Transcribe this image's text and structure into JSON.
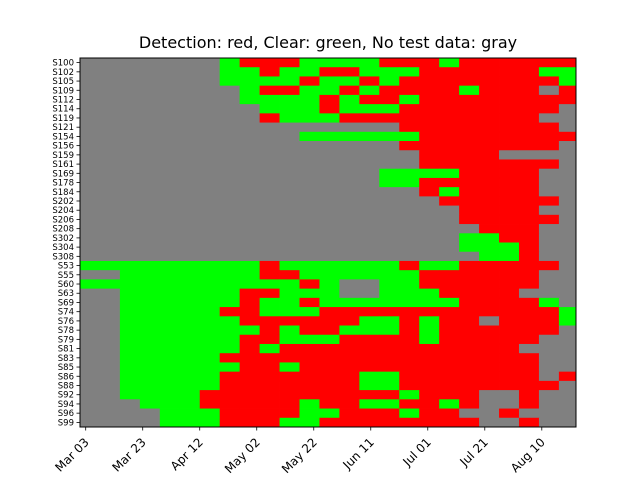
{
  "chart_data": {
    "type": "heatmap",
    "title": "Detection: red, Clear: green, No test data: gray",
    "xlabel": "",
    "ylabel": "",
    "colors": {
      "detection": "#ff0000",
      "clear": "#00ff00",
      "no_data": "#808080"
    },
    "x_start": "2020-03-01",
    "x_end": "2020-08-22",
    "week_starts": [
      "2020-03-01",
      "2020-03-08",
      "2020-03-15",
      "2020-03-22",
      "2020-03-29",
      "2020-04-05",
      "2020-04-12",
      "2020-04-19",
      "2020-04-26",
      "2020-05-03",
      "2020-05-10",
      "2020-05-17",
      "2020-05-24",
      "2020-05-31",
      "2020-06-07",
      "2020-06-14",
      "2020-06-21",
      "2020-06-28",
      "2020-07-05",
      "2020-07-12",
      "2020-07-19",
      "2020-07-26",
      "2020-08-02",
      "2020-08-09",
      "2020-08-16"
    ],
    "xticks": [
      "Mar 03",
      "Mar 23",
      "Apr 12",
      "May 02",
      "May 22",
      "Jun 11",
      "Jul 01",
      "Jul 21",
      "Aug 10"
    ],
    "xtick_dates": [
      "2020-03-03",
      "2020-03-23",
      "2020-04-12",
      "2020-05-02",
      "2020-05-22",
      "2020-06-11",
      "2020-07-01",
      "2020-07-21",
      "2020-08-10"
    ],
    "yticks": [
      "S100",
      "S102",
      "S105",
      "S109",
      "S112",
      "S114",
      "S119",
      "S121",
      "S154",
      "S156",
      "S159",
      "S161",
      "S169",
      "S178",
      "S184",
      "S202",
      "S204",
      "S206",
      "S208",
      "S302",
      "S304",
      "S308",
      "S53",
      "S55",
      "S60",
      "S63",
      "S69",
      "S74",
      "S76",
      "S78",
      "S79",
      "S81",
      "S83",
      "S85",
      "S86",
      "S88",
      "S92",
      "S94",
      "S96",
      "S99"
    ],
    "values": [
      "GGGGGGGCRRRCCCCRRRCRRRRRR",
      "GGGGGGGCCRCCRRCCCRRRRRRCC",
      "GGGGGGGCCCCRCCRCRRRRRRRRC",
      "GGGGGGGGCRRCCRCRRRRCRRRGR",
      "GGGGGGGGCCCCRCRRCRRRRRRRR",
      "GGGGGGGGGCCCRCCCRRRRRRRRG",
      "GGGGGGGGGRCCCRRRRRRRRRRGG",
      "GGGGGGGGGGGGGGGGRRRRRRRRG",
      "GGGGGGGGGGGCCCCCCRRRRRRRR",
      "GGGGGGGGGGGGGGGGRRRRRRRRG",
      "GGGGGGGGGGGGGGGGGRRRRGGGG",
      "GGGGGGGGGGGGGGGGGRRRRRRRG",
      "GGGGGGGGGGGGGGGCCCCRRRRGG",
      "GGGGGGGGGGGGGGGCCRRRRRRGG",
      "GGGGGGGGGGGGGGGGGRCRRRRGG",
      "GGGGGGGGGGGGGGGGGGRRRRRRG",
      "GGGGGGGGGGGGGGGGGGGRRRRGG",
      "GGGGGGGGGGGGGGGGGGGRRRRRG",
      "GGGGGGGGGGGGGGGGGGGGRRRGG",
      "GGGGGGGGGGGGGGGGGGGCCRRGG",
      "GGGGGGGGGGGGGGGGGGGCCCRGG",
      "GGGGGGGGGGGGGGGGGGGGCCRGG",
      "CCCCCCCCCRCCCCCCRCCRRRRRG",
      "GGCCCCCCCRRCCCCCCRRRRRRGG",
      "CCCCCCCCCCCRCGGCCRRRRRRGG",
      "GGCCCCCCRRCCCGGCCCRRRRGGG",
      "GGCCCCCCRCCRCCCCCCCRRRRCG",
      "GGCCCCCRRCCCRRRRRRRRRRRRC",
      "GGCCCCCCRRRRRRCCRCRRGRRRC",
      "GGCCCCCCCRCRRCCCRCRRRRRRG",
      "GGCCCCCCRRCCCRRRRCRRRRRGG",
      "GGCCCCCCRCRRRRRRRRRRRRGGG",
      "GGCCCCCRRRRRRRRRRRRRRRRGG",
      "GGCCCCCCRRCRRRRRRRRRRRRGG",
      "GGCCCCCRRRRRRRCCRRRRRRRGR",
      "GGCCCCCRRRRRRRCCRRRRRRRRG",
      "GGCCCCRRRRRRRRRRCRRRGGRGG",
      "GGGCCCRRRRRCRRCCRRCRGGRGG",
      "GGGGCCCRRRRCCRRRCRRGGRGGG",
      "GGGGCCCRRRCCRRRRRRRRGGRGG"
    ]
  }
}
